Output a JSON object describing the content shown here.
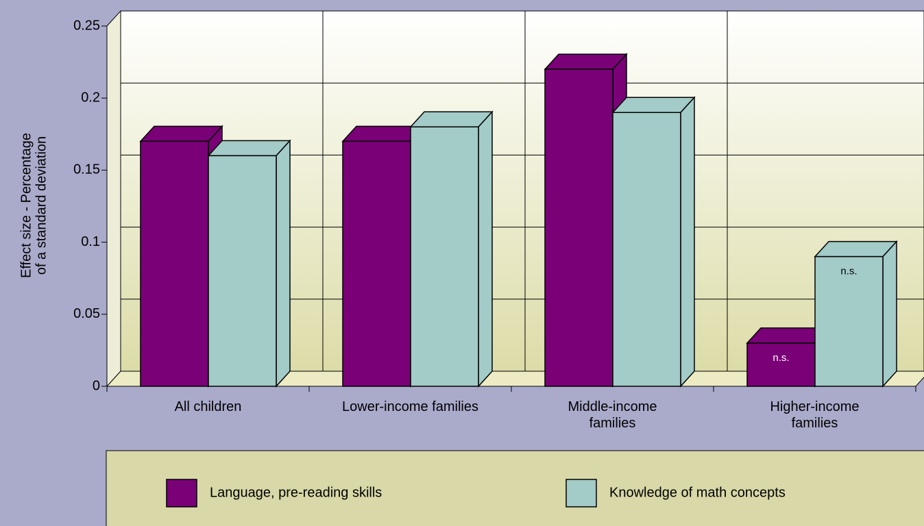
{
  "chart_data": {
    "type": "bar3d",
    "ylabel": [
      "Effect size - Percentage",
      "of a standard deviation"
    ],
    "categories": [
      "All children",
      "Lower-income families",
      "Middle-income\nfamilies",
      "Higher-income\nfamilies"
    ],
    "series": [
      {
        "name": "Language, pre-reading skills",
        "color": "#7a0077",
        "values": [
          0.17,
          0.17,
          0.22,
          0.03
        ],
        "notes": [
          null,
          null,
          null,
          "n.s."
        ]
      },
      {
        "name": "Knowledge of math concepts",
        "color": "#a3cbc7",
        "values": [
          0.16,
          0.18,
          0.19,
          0.09
        ],
        "notes": [
          null,
          null,
          null,
          "n.s."
        ]
      }
    ],
    "ylim": [
      0,
      0.25
    ],
    "yticks": [
      0,
      0.05,
      0.1,
      0.15,
      0.2,
      0.25
    ],
    "grid": true
  }
}
